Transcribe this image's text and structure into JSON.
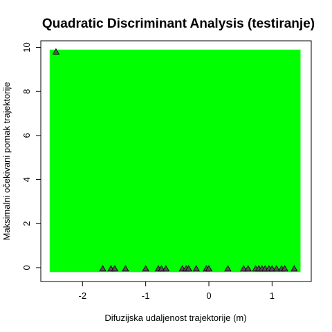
{
  "chart_data": {
    "type": "scatter",
    "title": "Quadratic Discriminant Analysis (testiranje)",
    "xlabel": "Difuzijska udaljenost trajektorije (m)",
    "ylabel": "Maksimalni očekivani pomak trajektorije",
    "xlim": [
      -2.66,
      1.62
    ],
    "ylim": [
      -0.63,
      10.3
    ],
    "xticks": [
      -2,
      -1,
      0,
      1
    ],
    "yticks": [
      0,
      2,
      4,
      6,
      8,
      10
    ],
    "region": {
      "x": [
        -2.52,
        1.45
      ],
      "y": [
        -0.2,
        9.9
      ],
      "color": "#00ff00"
    },
    "marker": {
      "shape": "triangle",
      "fill": "#555555",
      "stroke": "#000000"
    },
    "points": [
      {
        "x": -2.42,
        "y": 9.8
      },
      {
        "x": -1.68,
        "y": -0.05
      },
      {
        "x": -1.55,
        "y": -0.05
      },
      {
        "x": -1.49,
        "y": -0.05
      },
      {
        "x": -1.32,
        "y": -0.05
      },
      {
        "x": -1.0,
        "y": -0.05
      },
      {
        "x": -0.8,
        "y": -0.05
      },
      {
        "x": -0.75,
        "y": -0.05
      },
      {
        "x": -0.68,
        "y": -0.05
      },
      {
        "x": -0.42,
        "y": -0.05
      },
      {
        "x": -0.36,
        "y": -0.05
      },
      {
        "x": -0.32,
        "y": -0.05
      },
      {
        "x": -0.2,
        "y": -0.05
      },
      {
        "x": -0.04,
        "y": -0.05
      },
      {
        "x": 0.0,
        "y": -0.05
      },
      {
        "x": 0.3,
        "y": -0.05
      },
      {
        "x": 0.55,
        "y": -0.05
      },
      {
        "x": 0.62,
        "y": -0.05
      },
      {
        "x": 0.74,
        "y": -0.05
      },
      {
        "x": 0.79,
        "y": -0.05
      },
      {
        "x": 0.84,
        "y": -0.05
      },
      {
        "x": 0.89,
        "y": -0.05
      },
      {
        "x": 0.95,
        "y": -0.05
      },
      {
        "x": 1.0,
        "y": -0.05
      },
      {
        "x": 1.07,
        "y": -0.05
      },
      {
        "x": 1.15,
        "y": -0.05
      },
      {
        "x": 1.2,
        "y": -0.05
      },
      {
        "x": 1.35,
        "y": -0.05
      }
    ]
  }
}
